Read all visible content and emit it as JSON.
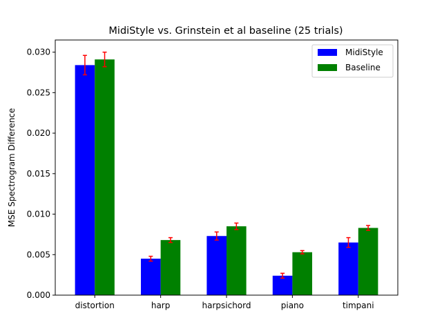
{
  "chart_data": {
    "type": "bar",
    "title": "MidiStyle vs. Grinstein et al baseline (25 trials)",
    "xlabel": "",
    "ylabel": "MSE Spectrogram Difference",
    "categories": [
      "distortion",
      "harp",
      "harpsichord",
      "piano",
      "timpani"
    ],
    "ylim": [
      0,
      0.0315
    ],
    "yticks": [
      0.0,
      0.005,
      0.01,
      0.015,
      0.02,
      0.025,
      0.03
    ],
    "ytick_labels": [
      "0.000",
      "0.005",
      "0.010",
      "0.015",
      "0.020",
      "0.025",
      "0.030"
    ],
    "grid": false,
    "legend_position": "top-right",
    "error_bar_color": "#ff0000",
    "series": [
      {
        "name": "MidiStyle",
        "color": "#0000ff",
        "values": [
          0.0284,
          0.0045,
          0.0073,
          0.0024,
          0.0065
        ],
        "errors": [
          0.0012,
          0.0003,
          0.0005,
          0.0003,
          0.0006
        ]
      },
      {
        "name": "Baseline",
        "color": "#008000",
        "values": [
          0.0291,
          0.0068,
          0.0085,
          0.0053,
          0.0083
        ],
        "errors": [
          0.0009,
          0.0003,
          0.0004,
          0.0002,
          0.0003
        ]
      }
    ]
  }
}
